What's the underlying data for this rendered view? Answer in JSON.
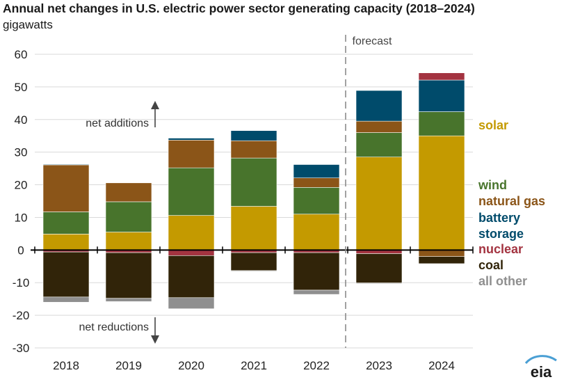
{
  "title": "Annual net changes in U.S. electric power sector generating capacity (2018–2024)",
  "unit": "gigawatts",
  "annotations": {
    "forecast": "forecast",
    "net_additions": "net additions",
    "net_reductions": "net reductions"
  },
  "logo_text": "eia",
  "colors": {
    "solar": "#c49a00",
    "wind": "#48742c",
    "natural_gas": "#8b5518",
    "battery_storage": "#004b6b",
    "nuclear": "#a33340",
    "coal": "#312409",
    "all_other": "#8f8f8f"
  },
  "chart_data": {
    "type": "bar",
    "stacked": true,
    "title": "Annual net changes in U.S. electric power sector generating capacity (2018–2024)",
    "ylabel": "gigawatts",
    "ylim": [
      -30,
      60
    ],
    "yticks": [
      60,
      50,
      40,
      30,
      20,
      10,
      0,
      -10,
      -20,
      -30
    ],
    "grid": true,
    "legend_position": "right",
    "forecast_from": "2023",
    "categories": [
      "2018",
      "2019",
      "2020",
      "2021",
      "2022",
      "2023",
      "2024"
    ],
    "series": [
      {
        "name": "solar",
        "color": "#c49a00",
        "values": [
          4.9,
          5.5,
          10.6,
          13.4,
          11.0,
          28.5,
          35.0
        ]
      },
      {
        "name": "wind",
        "color": "#48742c",
        "values": [
          6.8,
          9.3,
          14.6,
          14.8,
          8.2,
          7.5,
          7.4
        ]
      },
      {
        "name": "natural gas",
        "color": "#8b5518",
        "values": [
          14.4,
          5.8,
          8.5,
          5.3,
          2.9,
          3.5,
          -2.0
        ]
      },
      {
        "name": "battery storage",
        "color": "#004b6b",
        "values": [
          0.2,
          0.1,
          0.6,
          3.1,
          4.1,
          9.4,
          9.7
        ]
      },
      {
        "name": "nuclear",
        "color": "#a33340",
        "values": [
          -0.6,
          -0.8,
          -1.7,
          -0.8,
          -0.8,
          -1.1,
          2.2
        ]
      },
      {
        "name": "coal",
        "color": "#312409",
        "values": [
          -13.8,
          -14.0,
          -12.9,
          -5.5,
          -11.5,
          -9.0,
          -2.2
        ]
      },
      {
        "name": "all other",
        "color": "#8f8f8f",
        "values": [
          -1.6,
          -1.0,
          -3.4,
          -0.2,
          -1.3,
          -0.2,
          -0.1
        ]
      }
    ]
  }
}
